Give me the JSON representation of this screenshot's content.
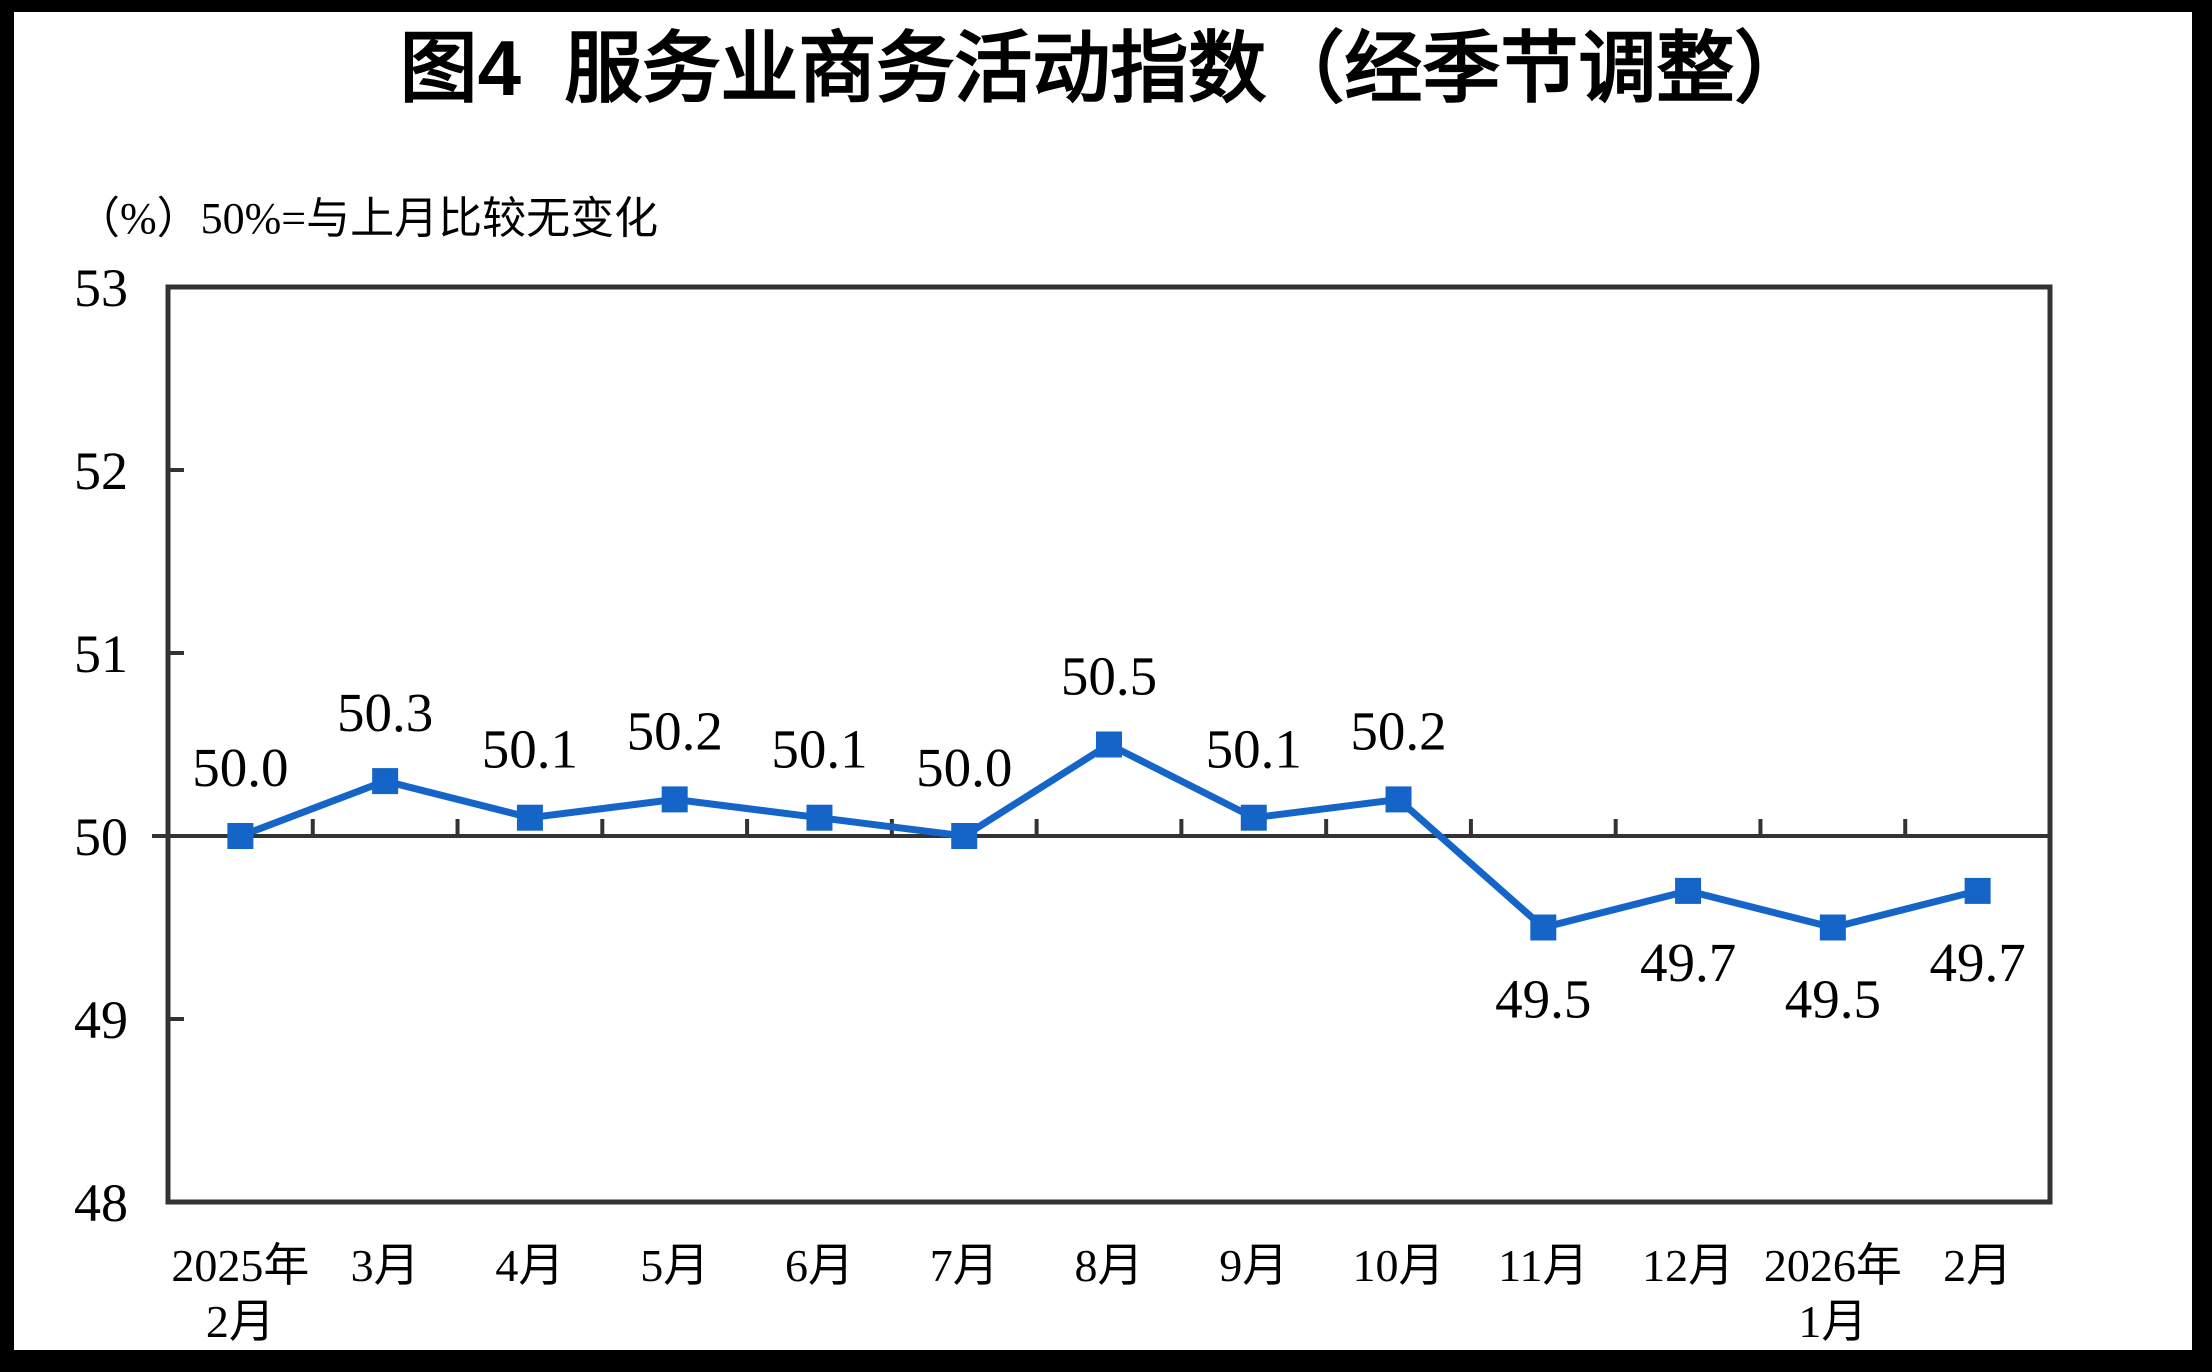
{
  "page": {
    "figure_label": "图4"
  },
  "colors": {
    "line": "#1565C8",
    "axis": "#333333",
    "text": "#000000",
    "background": "#FFFFFF",
    "border": "#000000"
  },
  "chart_data": {
    "type": "line",
    "title": "图4  服务业商务活动指数（经季节调整）",
    "unit_note": "（%）50%=与上月比较无变化",
    "series_name": "服务业商务活动指数",
    "categories": [
      [
        "2025年",
        "2月"
      ],
      [
        "3月"
      ],
      [
        "4月"
      ],
      [
        "5月"
      ],
      [
        "6月"
      ],
      [
        "7月"
      ],
      [
        "8月"
      ],
      [
        "9月"
      ],
      [
        "10月"
      ],
      [
        "11月"
      ],
      [
        "12月"
      ],
      [
        "2026年",
        "1月"
      ],
      [
        "2月"
      ]
    ],
    "values": [
      50.0,
      50.3,
      50.1,
      50.2,
      50.1,
      50.0,
      50.5,
      50.1,
      50.2,
      49.5,
      49.7,
      49.5,
      49.7
    ],
    "ylim": [
      48,
      53
    ],
    "yticks": [
      48,
      49,
      50,
      51,
      52,
      53
    ],
    "reference_line": 50,
    "marker": "square",
    "grid": "off",
    "legend": "none"
  }
}
